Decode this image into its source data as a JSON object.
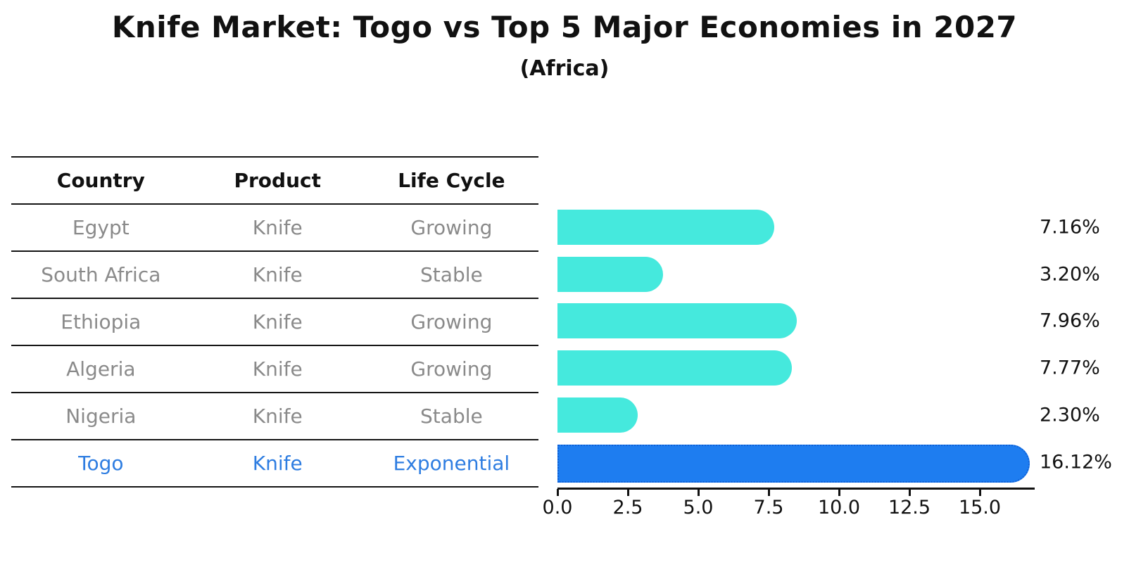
{
  "title": "Knife Market: Togo vs Top 5 Major Economies in 2027",
  "subtitle": "(Africa)",
  "colors": {
    "bar_default": "#45e9dd",
    "bar_highlight": "#1e7df0",
    "bar_highlight_border": "#0d5fd6",
    "highlight_text": "#2e7de1",
    "row_text": "#8a8a8a",
    "heading_text": "#111111",
    "background": "#ffffff"
  },
  "table": {
    "headers": [
      "Country",
      "Product",
      "Life Cycle"
    ],
    "rows": [
      {
        "country": "Egypt",
        "product": "Knife",
        "life_cycle": "Growing",
        "highlighted": false
      },
      {
        "country": "South Africa",
        "product": "Knife",
        "life_cycle": "Stable",
        "highlighted": false
      },
      {
        "country": "Ethiopia",
        "product": "Knife",
        "life_cycle": "Growing",
        "highlighted": false
      },
      {
        "country": "Algeria",
        "product": "Knife",
        "life_cycle": "Growing",
        "highlighted": false
      },
      {
        "country": "Nigeria",
        "product": "Knife",
        "life_cycle": "Stable",
        "highlighted": false
      },
      {
        "country": "Togo",
        "product": "Knife",
        "life_cycle": "Exponential",
        "highlighted": true
      }
    ]
  },
  "chart_data": {
    "type": "bar",
    "orientation": "horizontal",
    "title": "Knife Market: Togo vs Top 5 Major Economies in 2027",
    "subtitle": "(Africa)",
    "categories": [
      "Egypt",
      "South Africa",
      "Ethiopia",
      "Algeria",
      "Nigeria",
      "Togo"
    ],
    "values": [
      7.16,
      3.2,
      7.96,
      7.77,
      2.3,
      16.12
    ],
    "value_labels": [
      "7.16%",
      "3.20%",
      "7.96%",
      "7.77%",
      "2.30%",
      "16.12%"
    ],
    "highlight_index": 5,
    "xlabel": "",
    "ylabel": "",
    "xlim": [
      0,
      16.95
    ],
    "x_ticks": [
      0,
      2.5,
      5,
      7.5,
      10,
      12.5,
      15
    ],
    "x_tick_labels": [
      "0.0",
      "2.5",
      "5.0",
      "7.5",
      "10.0",
      "12.5",
      "15.0"
    ],
    "grid": false,
    "legend": false
  }
}
